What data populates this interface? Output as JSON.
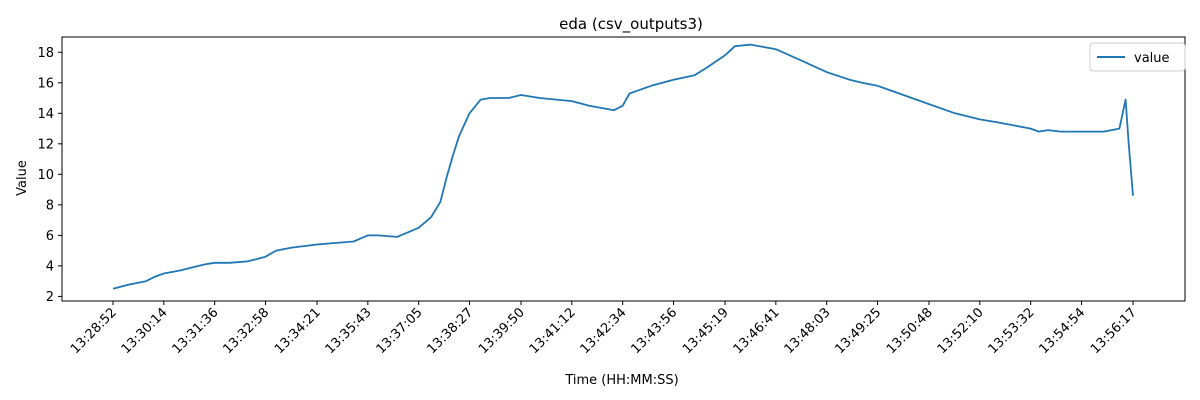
{
  "chart_data": {
    "type": "line",
    "title": "eda (csv_outputs3)",
    "xlabel": "Time (HH:MM:SS)",
    "ylabel": "Value",
    "x_tick_labels": [
      "13:28:52",
      "13:30:14",
      "13:31:36",
      "13:32:58",
      "13:34:21",
      "13:35:43",
      "13:37:05",
      "13:38:27",
      "13:39:50",
      "13:41:12",
      "13:42:34",
      "13:43:56",
      "13:45:19",
      "13:46:41",
      "13:48:03",
      "13:49:25",
      "13:50:48",
      "13:52:10",
      "13:53:32",
      "13:54:54",
      "13:56:17"
    ],
    "y_ticks": [
      2,
      4,
      6,
      8,
      10,
      12,
      14,
      16,
      18
    ],
    "ylim": [
      1.7,
      19.0
    ],
    "grid": false,
    "legend_position": "top-right",
    "colors": {
      "series": "#1f77b4"
    },
    "series": [
      {
        "name": "value",
        "x": [
          "13:28:52",
          "13:29:20",
          "13:29:45",
          "13:30:00",
          "13:30:14",
          "13:30:40",
          "13:31:00",
          "13:31:20",
          "13:31:36",
          "13:32:00",
          "13:32:30",
          "13:32:58",
          "13:33:15",
          "13:33:40",
          "13:34:00",
          "13:34:21",
          "13:34:50",
          "13:35:20",
          "13:35:43",
          "13:36:00",
          "13:36:30",
          "13:37:05",
          "13:37:25",
          "13:37:40",
          "13:37:50",
          "13:38:00",
          "13:38:10",
          "13:38:27",
          "13:38:45",
          "13:39:00",
          "13:39:30",
          "13:39:50",
          "13:40:20",
          "13:41:12",
          "13:41:40",
          "13:42:20",
          "13:42:34",
          "13:42:45",
          "13:43:20",
          "13:43:56",
          "13:44:30",
          "13:44:50",
          "13:45:19",
          "13:45:35",
          "13:46:00",
          "13:46:41",
          "13:47:20",
          "13:48:03",
          "13:48:40",
          "13:49:00",
          "13:49:25",
          "13:50:00",
          "13:50:48",
          "13:51:30",
          "13:52:10",
          "13:52:40",
          "13:53:32",
          "13:53:45",
          "13:54:00",
          "13:54:20",
          "13:54:54",
          "13:55:30",
          "13:55:55",
          "13:56:05",
          "13:56:10",
          "13:56:17"
        ],
        "values": [
          2.5,
          2.8,
          3.0,
          3.3,
          3.5,
          3.7,
          3.9,
          4.1,
          4.2,
          4.2,
          4.3,
          4.6,
          5.0,
          5.2,
          5.3,
          5.4,
          5.5,
          5.6,
          6.0,
          6.0,
          5.9,
          6.5,
          7.2,
          8.2,
          9.8,
          11.2,
          12.5,
          14.0,
          14.9,
          15.0,
          15.0,
          15.2,
          15.0,
          14.8,
          14.5,
          14.2,
          14.5,
          15.3,
          15.8,
          16.2,
          16.5,
          17.0,
          17.8,
          18.4,
          18.5,
          18.2,
          17.5,
          16.7,
          16.2,
          16.0,
          15.8,
          15.3,
          14.6,
          14.0,
          13.6,
          13.4,
          13.0,
          12.8,
          12.9,
          12.8,
          12.8,
          12.8,
          13.0,
          14.9,
          12.0,
          8.6
        ]
      }
    ]
  }
}
